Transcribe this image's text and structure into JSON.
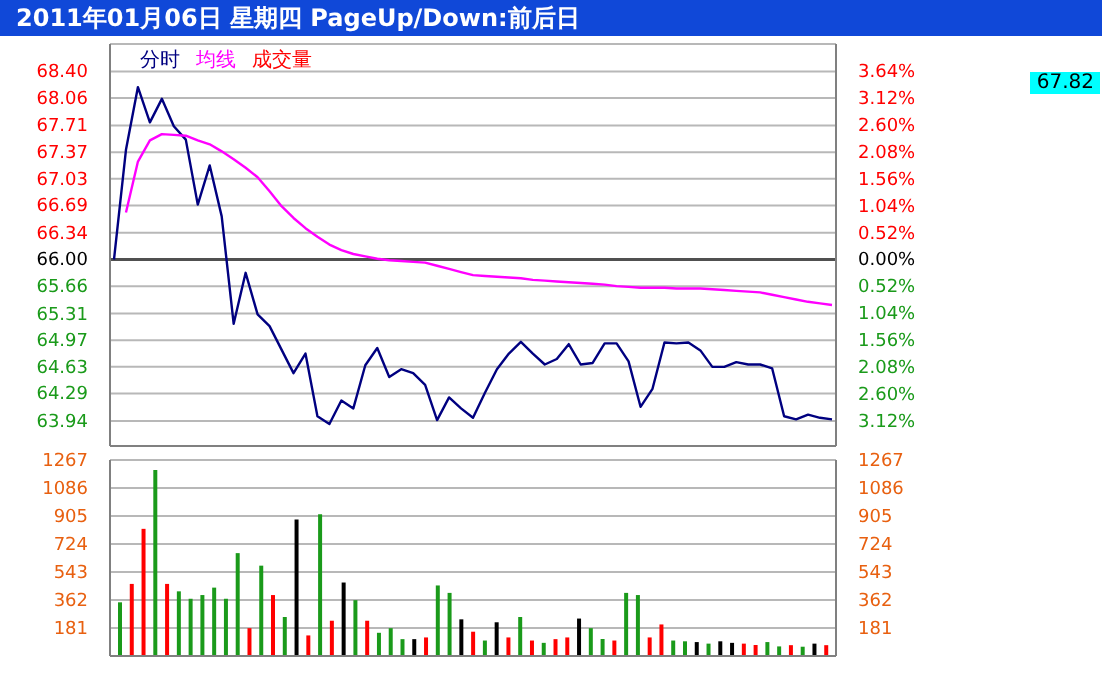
{
  "chart_data": [
    {
      "type": "line",
      "title": "2011年01月06日  星期四  PageUp/Down:前后日",
      "grid": "y",
      "tick_labels": "y",
      "categories": [
        null,
        null,
        null,
        null,
        null,
        null,
        null,
        null,
        null,
        null,
        null,
        null,
        null,
        null,
        null,
        null,
        null,
        null,
        null,
        null,
        null,
        null,
        null,
        null,
        null,
        null,
        null,
        null,
        null,
        null,
        null,
        null,
        null,
        null,
        null,
        null,
        null,
        null,
        null,
        null,
        null,
        null,
        null,
        null,
        null,
        null,
        null,
        null,
        null,
        null,
        null,
        null,
        null,
        null,
        null,
        null,
        null,
        null,
        null,
        null,
        null
      ],
      "ylim": [
        63.62,
        68.75
      ],
      "yticks": [
        63.94,
        64.29,
        64.63,
        64.97,
        65.31,
        65.66,
        {
          "value": 66,
          "label": "66.00"
        },
        66.34,
        66.69,
        67.03,
        67.37,
        67.71,
        68.06,
        {
          "value": 68.4,
          "label": "68.40"
        }
      ],
      "y2lim": [
        -3.61,
        4.17
      ],
      "y2ticks": [
        {
          "value": 3.64,
          "label": "3.64%"
        },
        {
          "value": 3.12,
          "label": "3.12%"
        },
        {
          "value": 2.6,
          "label": "2.60%"
        },
        {
          "value": 2.08,
          "label": "2.08%"
        },
        {
          "value": 1.56,
          "label": "1.56%"
        },
        {
          "value": 1.04,
          "label": "1.04%"
        },
        {
          "value": 0.52,
          "label": "0.52%"
        },
        {
          "value": 0,
          "label": "0.00%"
        },
        {
          "value": -0.52,
          "label": "0.52%"
        },
        {
          "value": -1.04,
          "label": "1.04%"
        },
        {
          "value": -1.56,
          "label": "1.56%"
        },
        {
          "value": -2.08,
          "label": "2.08%"
        },
        {
          "value": -2.6,
          "label": "2.60%"
        },
        {
          "value": -3.12,
          "label": "3.12%"
        }
      ],
      "ref_lines": [
        {
          "axis": "y",
          "value": 66,
          "color": "#505050"
        }
      ],
      "annotations": [
        "67.82"
      ],
      "series": [
        {
          "name": "分时",
          "color": "#000080",
          "values": [
            66.0,
            67.4,
            68.2,
            67.75,
            68.05,
            67.7,
            67.53,
            66.7,
            67.2,
            66.55,
            65.18,
            65.83,
            65.3,
            65.15,
            64.85,
            64.55,
            64.8,
            64.0,
            63.9,
            64.2,
            64.1,
            64.65,
            64.87,
            64.5,
            64.6,
            64.55,
            64.4,
            63.95,
            64.24,
            64.1,
            63.98,
            64.3,
            64.6,
            64.8,
            64.95,
            64.8,
            64.66,
            64.73,
            64.92,
            64.66,
            64.68,
            64.93,
            64.93,
            64.7,
            64.12,
            64.35,
            64.94,
            64.93,
            64.94,
            64.84,
            64.63,
            64.63,
            64.69,
            64.66,
            64.66,
            64.61,
            64.0,
            63.96,
            64.02,
            63.98,
            63.96
          ]
        },
        {
          "name": "均线",
          "color": "#ff00ff",
          "values": [
            null,
            66.6,
            67.25,
            67.52,
            67.6,
            67.59,
            67.58,
            67.52,
            67.47,
            67.38,
            67.28,
            67.17,
            67.05,
            66.87,
            66.68,
            66.53,
            66.4,
            66.29,
            66.19,
            66.12,
            66.07,
            66.04,
            66.01,
            65.99,
            65.98,
            65.97,
            65.96,
            65.92,
            65.88,
            65.84,
            65.8,
            65.79,
            65.78,
            65.77,
            65.76,
            65.74,
            65.73,
            65.72,
            65.71,
            65.7,
            65.69,
            65.68,
            65.66,
            65.65,
            65.64,
            65.64,
            65.64,
            65.63,
            65.63,
            65.63,
            65.62,
            65.61,
            65.6,
            65.59,
            65.58,
            65.55,
            65.52,
            65.49,
            65.46,
            65.44,
            65.42
          ]
        }
      ]
    },
    {
      "type": "bar",
      "grid": "y",
      "tick_labels": "y",
      "categories": [
        null,
        null,
        null,
        null,
        null,
        null,
        null,
        null,
        null,
        null,
        null,
        null,
        null,
        null,
        null,
        null,
        null,
        null,
        null,
        null,
        null,
        null,
        null,
        null,
        null,
        null,
        null,
        null,
        null,
        null,
        null,
        null,
        null,
        null,
        null,
        null,
        null,
        null,
        null,
        null,
        null,
        null,
        null,
        null,
        null,
        null,
        null,
        null,
        null,
        null,
        null,
        null,
        null,
        null,
        null,
        null,
        null,
        null,
        null,
        null,
        null
      ],
      "ylim": [
        0,
        1267
      ],
      "yticks": [
        181,
        362,
        543,
        724,
        905,
        1086,
        1267
      ],
      "y2lim": [
        0,
        1267
      ],
      "y2ticks": [
        181,
        362,
        543,
        724,
        905,
        1086,
        1267
      ],
      "series": [
        {
          "name": "成交量",
          "color": "#ff0000",
          "values": [
            347,
            466,
            822,
            1202,
            466,
            418,
            370,
            394,
            442,
            370,
            665,
            180,
            584,
            394,
            252,
            883,
            133,
            917,
            228,
            475,
            361,
            228,
            150,
            180,
            109,
            109,
            120,
            456,
            408,
            237,
            157,
            100,
            218,
            120,
            252,
            100,
            85,
            109,
            120,
            242,
            180,
            110,
            100,
            408,
            394,
            120,
            204,
            100,
            95,
            90,
            80,
            95,
            85,
            80,
            71,
            90,
            62,
            70,
            60,
            80,
            70
          ],
          "colors": [
            "#1a9a1a",
            "#ff0000",
            "#ff0000",
            "#1a9a1a",
            "#ff0000",
            "#1a9a1a",
            "#1a9a1a",
            "#1a9a1a",
            "#1a9a1a",
            "#1a9a1a",
            "#1a9a1a",
            "#ff0000",
            "#1a9a1a",
            "#ff0000",
            "#1a9a1a",
            "#000000",
            "#ff0000",
            "#1a9a1a",
            "#ff0000",
            "#000000",
            "#1a9a1a",
            "#ff0000",
            "#1a9a1a",
            "#1a9a1a",
            "#1a9a1a",
            "#000000",
            "#ff0000",
            "#1a9a1a",
            "#1a9a1a",
            "#000000",
            "#ff0000",
            "#1a9a1a",
            "#000000",
            "#ff0000",
            "#1a9a1a",
            "#ff0000",
            "#1a9a1a",
            "#ff0000",
            "#ff0000",
            "#000000",
            "#1a9a1a",
            "#1a9a1a",
            "#ff0000",
            "#1a9a1a",
            "#1a9a1a",
            "#ff0000",
            "#ff0000",
            "#1a9a1a",
            "#1a9a1a",
            "#000000",
            "#1a9a1a",
            "#000000",
            "#000000",
            "#ff0000",
            "#ff0000",
            "#1a9a1a",
            "#1a9a1a",
            "#ff0000",
            "#1a9a1a",
            "#000000",
            "#ff0000"
          ]
        }
      ]
    }
  ]
}
